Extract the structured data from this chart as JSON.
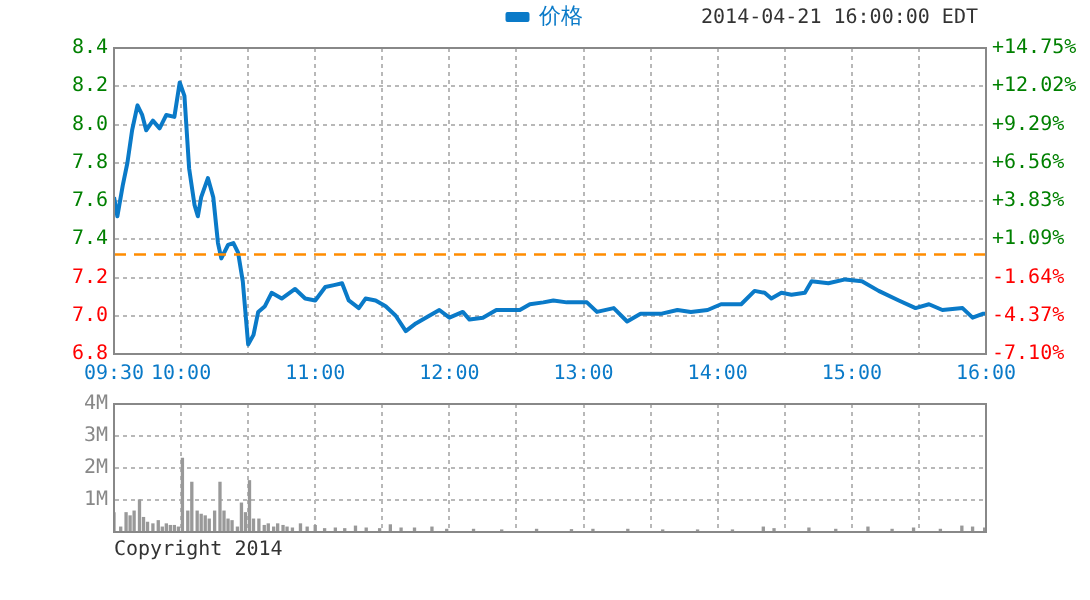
{
  "chart_data": [
    {
      "type": "line",
      "legend": "top",
      "grid": true,
      "marker": "none",
      "line_style": "solid",
      "annotations": [
        "2014-04-21 16:00:00 EDT"
      ],
      "xlim": [
        9.5,
        16
      ],
      "xticks": [
        {
          "value": 9.5,
          "label": "09:30"
        },
        {
          "value": 10,
          "label": "10:00"
        },
        {
          "value": 10.5,
          "label": null
        },
        {
          "value": 11,
          "label": "11:00"
        },
        {
          "value": 11.5,
          "label": null
        },
        {
          "value": 12,
          "label": "12:00"
        },
        {
          "value": 12.5,
          "label": null
        },
        {
          "value": 13,
          "label": "13:00"
        },
        {
          "value": 13.5,
          "label": null
        },
        {
          "value": 14,
          "label": "14:00"
        },
        {
          "value": 14.5,
          "label": null
        },
        {
          "value": 15,
          "label": "15:00"
        },
        {
          "value": 15.5,
          "label": null
        },
        {
          "value": 16,
          "label": "16:00"
        }
      ],
      "ylim": [
        6.8,
        8.4
      ],
      "yticks": [
        6.8,
        {
          "value": 7,
          "label": "7.0"
        },
        7.2,
        7.4,
        7.6,
        7.8,
        {
          "value": 8,
          "label": "8.0"
        },
        8.2,
        8.4
      ],
      "y2lim": [
        -7.1,
        14.75
      ],
      "y2ticks": [
        {
          "value": -7.1,
          "label": "-7.10%"
        },
        {
          "value": -4.37,
          "label": "-4.37%"
        },
        {
          "value": -1.64,
          "label": "-1.64%"
        },
        {
          "value": 1.09,
          "label": "+1.09%"
        },
        {
          "value": 3.83,
          "label": "+3.83%"
        },
        {
          "value": 6.56,
          "label": "+6.56%"
        },
        {
          "value": 9.29,
          "label": "+9.29%"
        },
        {
          "value": 12.02,
          "label": "+12.02%"
        },
        {
          "value": 14.75,
          "label": "+14.75%"
        }
      ],
      "ref_lines": [
        {
          "axis": "y",
          "value": 7.32,
          "color": "#ff8c00",
          "line_style": "dashed"
        }
      ],
      "series": [
        {
          "name": "价格",
          "color": "#0a7ac8",
          "x": [
            9.5,
            9.525,
            9.565,
            9.6,
            9.635,
            9.675,
            9.71,
            9.74,
            9.79,
            9.84,
            9.89,
            9.95,
            9.99,
            10.025,
            10.06,
            10.1,
            10.125,
            10.15,
            10.2,
            10.24,
            10.275,
            10.3,
            10.35,
            10.39,
            10.425,
            10.46,
            10.5,
            10.54,
            10.575,
            10.625,
            10.675,
            10.75,
            10.85,
            10.925,
            11.0,
            11.075,
            11.14,
            11.2,
            11.25,
            11.325,
            11.375,
            11.45,
            11.525,
            11.6,
            11.675,
            11.75,
            11.85,
            11.925,
            12.0,
            12.1,
            12.15,
            12.25,
            12.35,
            12.525,
            12.6,
            12.7,
            12.775,
            12.875,
            13.025,
            13.1,
            13.225,
            13.325,
            13.425,
            13.575,
            13.7,
            13.8,
            13.925,
            14.025,
            14.175,
            14.275,
            14.35,
            14.4,
            14.475,
            14.55,
            14.65,
            14.7,
            14.825,
            14.95,
            15.075,
            15.2,
            15.35,
            15.475,
            15.575,
            15.675,
            15.825,
            15.9,
            15.975,
            16.0
          ],
          "values": [
            7.62,
            7.52,
            7.68,
            7.8,
            7.97,
            8.1,
            8.05,
            7.97,
            8.02,
            7.98,
            8.05,
            8.04,
            8.22,
            8.15,
            7.77,
            7.58,
            7.52,
            7.62,
            7.72,
            7.62,
            7.38,
            7.3,
            7.37,
            7.38,
            7.33,
            7.18,
            6.85,
            6.9,
            7.02,
            7.05,
            7.12,
            7.09,
            7.14,
            7.09,
            7.08,
            7.15,
            7.16,
            7.17,
            7.08,
            7.04,
            7.09,
            7.08,
            7.05,
            7.0,
            6.92,
            6.96,
            7.0,
            7.03,
            6.99,
            7.02,
            6.98,
            6.99,
            7.03,
            7.03,
            7.06,
            7.07,
            7.08,
            7.07,
            7.07,
            7.02,
            7.04,
            6.97,
            7.01,
            7.01,
            7.03,
            7.02,
            7.03,
            7.06,
            7.06,
            7.13,
            7.12,
            7.09,
            7.12,
            7.11,
            7.12,
            7.18,
            7.17,
            7.19,
            7.18,
            7.13,
            7.08,
            7.04,
            7.06,
            7.03,
            7.04,
            6.99,
            7.01,
            7.01
          ]
        }
      ]
    },
    {
      "type": "bar",
      "grid": true,
      "tick_labels": "y",
      "legend": false,
      "annotations": [
        "Copyright 2014"
      ],
      "xlim": [
        9.5,
        16
      ],
      "xticks": [
        {
          "value": 9.5,
          "label": null
        },
        {
          "value": 10,
          "label": null
        },
        {
          "value": 10.5,
          "label": null
        },
        {
          "value": 11,
          "label": null
        },
        {
          "value": 11.5,
          "label": null
        },
        {
          "value": 12,
          "label": null
        },
        {
          "value": 12.5,
          "label": null
        },
        {
          "value": 13,
          "label": null
        },
        {
          "value": 13.5,
          "label": null
        },
        {
          "value": 14,
          "label": null
        },
        {
          "value": 14.5,
          "label": null
        },
        {
          "value": 15,
          "label": null
        },
        {
          "value": 15.5,
          "label": null
        },
        {
          "value": 16,
          "label": null
        }
      ],
      "ylim": [
        0,
        4
      ],
      "yticks": [
        {
          "value": 1,
          "label": "1M"
        },
        {
          "value": 2,
          "label": "2M"
        },
        {
          "value": 3,
          "label": "3M"
        },
        {
          "value": 4,
          "label": "4M"
        }
      ],
      "series": [
        {
          "color": "#999999",
          "x": [
            9.5,
            9.55,
            9.59,
            9.62,
            9.65,
            9.69,
            9.72,
            9.75,
            9.79,
            9.83,
            9.86,
            9.89,
            9.92,
            9.95,
            9.98,
            10.01,
            10.05,
            10.08,
            10.12,
            10.15,
            10.18,
            10.21,
            10.25,
            10.29,
            10.32,
            10.35,
            10.38,
            10.42,
            10.45,
            10.48,
            10.51,
            10.54,
            10.58,
            10.62,
            10.65,
            10.69,
            10.72,
            10.76,
            10.79,
            10.83,
            10.89,
            10.94,
            11.0,
            11.07,
            11.15,
            11.22,
            11.3,
            11.38,
            11.48,
            11.56,
            11.64,
            11.74,
            11.87,
            11.98,
            12.18,
            12.39,
            12.65,
            12.91,
            13.07,
            13.33,
            13.59,
            13.85,
            14.11,
            14.34,
            14.42,
            14.68,
            14.88,
            15.12,
            15.3,
            15.46,
            15.66,
            15.82,
            15.9,
            15.99
          ],
          "values": [
            0.6,
            0.15,
            0.6,
            0.5,
            0.65,
            1.0,
            0.45,
            0.3,
            0.25,
            0.35,
            0.15,
            0.25,
            0.2,
            0.2,
            0.15,
            2.3,
            0.65,
            1.55,
            0.65,
            0.55,
            0.5,
            0.4,
            0.65,
            1.55,
            0.65,
            0.4,
            0.35,
            0.15,
            0.9,
            0.6,
            1.6,
            0.4,
            0.4,
            0.2,
            0.25,
            0.15,
            0.25,
            0.2,
            0.15,
            0.12,
            0.25,
            0.15,
            0.2,
            0.1,
            0.12,
            0.1,
            0.18,
            0.12,
            0.1,
            0.22,
            0.12,
            0.12,
            0.15,
            0.08,
            0.08,
            0.06,
            0.08,
            0.07,
            0.08,
            0.08,
            0.06,
            0.06,
            0.06,
            0.15,
            0.1,
            0.12,
            0.08,
            0.15,
            0.08,
            0.12,
            0.08,
            0.18,
            0.15,
            0.12
          ]
        }
      ]
    }
  ]
}
